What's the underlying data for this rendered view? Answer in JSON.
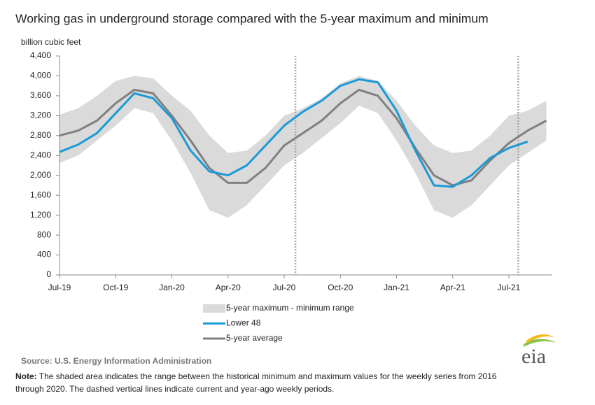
{
  "chart_data": {
    "type": "line",
    "title": "Working gas in underground  storage compared with the 5-year maximum  and minimum",
    "y_label": "billion cubic feet",
    "categories": [
      "Jul-19",
      null,
      null,
      "Oct-19",
      null,
      null,
      "Jan-20",
      null,
      null,
      "Apr-20",
      null,
      null,
      "Jul-20",
      null,
      null,
      "Oct-20",
      null,
      null,
      "Jan-21",
      null,
      null,
      "Apr-21",
      null,
      null,
      "Jul-21",
      null,
      null
    ],
    "ylim": [
      0,
      4400
    ],
    "yticks": [
      0,
      400,
      800,
      {
        "value": 1200,
        "label": "1,200"
      },
      {
        "value": 1600,
        "label": "1,600"
      },
      {
        "value": 2000,
        "label": "2,000"
      },
      {
        "value": 2400,
        "label": "2,400"
      },
      {
        "value": 2800,
        "label": "2,800"
      },
      {
        "value": 3200,
        "label": "3,200"
      },
      {
        "value": 3600,
        "label": "3,600"
      },
      {
        "value": 4000,
        "label": "4,000"
      },
      {
        "value": 4400,
        "label": "4,400"
      }
    ],
    "vlines": [
      12.6,
      24.5
    ],
    "series": [
      {
        "name": "5-year maximum - minimum range",
        "color": "#dadada",
        "type": "band",
        "max": [
          3220,
          3350,
          3600,
          3900,
          4000,
          3950,
          3600,
          3300,
          2800,
          2450,
          2500,
          2800,
          3200,
          3350,
          3550,
          3850,
          4000,
          3900,
          3500,
          3000,
          2600,
          2450,
          2500,
          2800,
          3200,
          3300,
          3500
        ],
        "min": [
          2250,
          2400,
          2700,
          3000,
          3350,
          3250,
          2700,
          2050,
          1300,
          1150,
          1400,
          1800,
          2200,
          2450,
          2750,
          3050,
          3400,
          3250,
          2700,
          2050,
          1300,
          1150,
          1400,
          1800,
          2200,
          2450,
          2700
        ]
      },
      {
        "name": "Lower 48",
        "color": "#1a9ad6",
        "values": [
          2470,
          2620,
          2850,
          3250,
          3650,
          3550,
          3150,
          2500,
          2080,
          2000,
          2200,
          2600,
          3000,
          3280,
          3500,
          3800,
          3930,
          3870,
          3300,
          2500,
          1800,
          1770,
          2000,
          2350,
          2550,
          2680,
          null
        ]
      },
      {
        "name": "5-year average",
        "color": "#808080",
        "values": [
          2800,
          2900,
          3100,
          3450,
          3720,
          3650,
          3200,
          2700,
          2150,
          1850,
          1850,
          2150,
          2600,
          2850,
          3100,
          3450,
          3720,
          3600,
          3150,
          2550,
          2000,
          1800,
          1900,
          2300,
          2650,
          2900,
          3100
        ]
      }
    ]
  },
  "source": "Source:  U.S. Energy Information Administration",
  "logo": "eia",
  "note_label": "Note:",
  "note_lines": [
    " The shaded area indicates the range between the historical minimum and maximum values for the weekly series from 2016",
    "through 2020. The dashed vertical lines indicate current and year-ago weekly periods."
  ]
}
